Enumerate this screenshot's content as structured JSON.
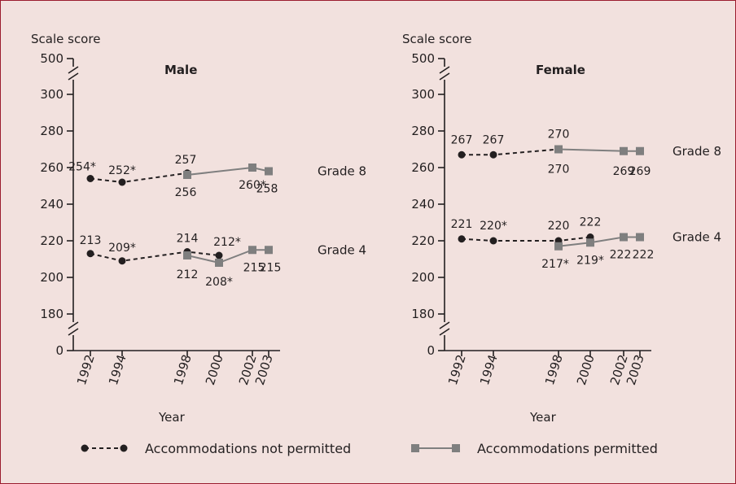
{
  "colors": {
    "background": "#f2e1de",
    "border": "#9b1c2e",
    "not_permitted": "#231f20",
    "permitted": "#7f7f7f"
  },
  "legend": {
    "not_permitted": "Accommodations not permitted",
    "permitted": "Accommodations permitted"
  },
  "chart_data": [
    {
      "type": "line",
      "title": "Male",
      "ylabel": "Scale score",
      "xlabel": "Year",
      "y_break": true,
      "y_ticks": [
        "0",
        "180",
        "200",
        "220",
        "240",
        "260",
        "280",
        "300",
        "500"
      ],
      "x_ticks": [
        "1992",
        "1994",
        "1998",
        "2000",
        "2002",
        "2003"
      ],
      "ylim": [
        170,
        310
      ],
      "grades": [
        {
          "name": "Grade 8",
          "series": [
            {
              "name": "Accommodations not permitted",
              "points": [
                {
                  "x": 1992,
                  "y": 254,
                  "label": "254*"
                },
                {
                  "x": 1994,
                  "y": 252,
                  "label": "252*"
                },
                {
                  "x": 1998,
                  "y": 257,
                  "label": "257"
                }
              ]
            },
            {
              "name": "Accommodations permitted",
              "points": [
                {
                  "x": 1998,
                  "y": 256,
                  "label": "256"
                },
                {
                  "x": 2002,
                  "y": 260,
                  "label": "260*"
                },
                {
                  "x": 2003,
                  "y": 258,
                  "label": "258"
                }
              ]
            }
          ]
        },
        {
          "name": "Grade 4",
          "series": [
            {
              "name": "Accommodations not permitted",
              "points": [
                {
                  "x": 1992,
                  "y": 213,
                  "label": "213"
                },
                {
                  "x": 1994,
                  "y": 209,
                  "label": "209*"
                },
                {
                  "x": 1998,
                  "y": 214,
                  "label": "214"
                },
                {
                  "x": 2000,
                  "y": 212,
                  "label": "212*"
                }
              ]
            },
            {
              "name": "Accommodations permitted",
              "points": [
                {
                  "x": 1998,
                  "y": 212,
                  "label": "212"
                },
                {
                  "x": 2000,
                  "y": 208,
                  "label": "208*"
                },
                {
                  "x": 2002,
                  "y": 215,
                  "label": "215"
                },
                {
                  "x": 2003,
                  "y": 215,
                  "label": "215"
                }
              ]
            }
          ]
        }
      ]
    },
    {
      "type": "line",
      "title": "Female",
      "ylabel": "Scale score",
      "xlabel": "Year",
      "y_break": true,
      "y_ticks": [
        "0",
        "180",
        "200",
        "220",
        "240",
        "260",
        "280",
        "300",
        "500"
      ],
      "x_ticks": [
        "1992",
        "1994",
        "1998",
        "2000",
        "2002",
        "2003"
      ],
      "ylim": [
        170,
        310
      ],
      "grades": [
        {
          "name": "Grade 8",
          "series": [
            {
              "name": "Accommodations not permitted",
              "points": [
                {
                  "x": 1992,
                  "y": 267,
                  "label": "267"
                },
                {
                  "x": 1994,
                  "y": 267,
                  "label": "267"
                },
                {
                  "x": 1998,
                  "y": 270,
                  "label": "270"
                }
              ]
            },
            {
              "name": "Accommodations permitted",
              "points": [
                {
                  "x": 1998,
                  "y": 270,
                  "label": "270"
                },
                {
                  "x": 2002,
                  "y": 269,
                  "label": "269"
                },
                {
                  "x": 2003,
                  "y": 269,
                  "label": "269"
                }
              ]
            }
          ]
        },
        {
          "name": "Grade 4",
          "series": [
            {
              "name": "Accommodations not permitted",
              "points": [
                {
                  "x": 1992,
                  "y": 221,
                  "label": "221"
                },
                {
                  "x": 1994,
                  "y": 220,
                  "label": "220*"
                },
                {
                  "x": 1998,
                  "y": 220,
                  "label": "220"
                },
                {
                  "x": 2000,
                  "y": 222,
                  "label": "222"
                }
              ]
            },
            {
              "name": "Accommodations permitted",
              "points": [
                {
                  "x": 1998,
                  "y": 217,
                  "label": "217*"
                },
                {
                  "x": 2000,
                  "y": 219,
                  "label": "219*"
                },
                {
                  "x": 2002,
                  "y": 222,
                  "label": "222"
                },
                {
                  "x": 2003,
                  "y": 222,
                  "label": "222"
                }
              ]
            }
          ]
        }
      ]
    }
  ]
}
